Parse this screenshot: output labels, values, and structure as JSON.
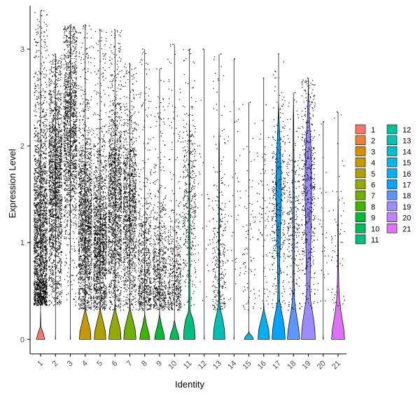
{
  "chart_data": {
    "type": "violin",
    "xlabel": "Identity",
    "ylabel": "Expression Level",
    "ylim": [
      -0.15,
      3.45
    ],
    "yticks": [
      0,
      1,
      2,
      3
    ],
    "grid": false,
    "legend_position": "right",
    "legend_columns": 2,
    "categories": [
      "1",
      "2",
      "3",
      "4",
      "5",
      "6",
      "7",
      "8",
      "9",
      "10",
      "11",
      "12",
      "13",
      "14",
      "15",
      "16",
      "17",
      "18",
      "19",
      "20",
      "21"
    ],
    "colors": [
      "#F8766D",
      "#EC8239",
      "#DB8E00",
      "#C79800",
      "#AFA100",
      "#93AA00",
      "#6FB000",
      "#3CB600",
      "#00BA38",
      "#00BD5C",
      "#00BF7C",
      "#00C19A",
      "#00C0B5",
      "#00BDCF",
      "#00B8E5",
      "#00B0F6",
      "#00A5FF",
      "#5E96FF",
      "#9D8AFF",
      "#C27FFF",
      "#DF70F8"
    ],
    "violins": [
      {
        "cat": "1",
        "shape": [
          [
            0,
            0.55
          ],
          [
            0.06,
            0.35
          ],
          [
            0.13,
            0.04
          ],
          [
            0.3,
            0.0
          ]
        ],
        "dots": {
          "n": 2200,
          "lo": 0.35,
          "hi": 3.1,
          "mode": 1.0,
          "max": 3.4
        }
      },
      {
        "cat": "2",
        "shape": [
          [
            0,
            0.02
          ],
          [
            0.05,
            0.0
          ]
        ],
        "dots": {
          "n": 1800,
          "lo": 0.35,
          "hi": 2.7,
          "mode": 1.6,
          "max": 2.95
        }
      },
      {
        "cat": "3",
        "shape": [
          [
            0,
            0.02
          ],
          [
            0.05,
            0.0
          ]
        ],
        "dots": {
          "n": 1400,
          "lo": 0.35,
          "hi": 2.55,
          "mode": 2.2,
          "max": 3.25
        }
      },
      {
        "cat": "4",
        "shape": [
          [
            0,
            0.75
          ],
          [
            0.08,
            0.7
          ],
          [
            0.18,
            0.4
          ],
          [
            0.28,
            0.1
          ],
          [
            0.35,
            0.0
          ]
        ],
        "dots": {
          "n": 1600,
          "lo": 0.3,
          "hi": 2.4,
          "mode": 1.2,
          "max": 3.25
        }
      },
      {
        "cat": "5",
        "shape": [
          [
            0,
            0.75
          ],
          [
            0.08,
            0.7
          ],
          [
            0.18,
            0.4
          ],
          [
            0.28,
            0.1
          ],
          [
            0.35,
            0.0
          ]
        ],
        "dots": {
          "n": 1500,
          "lo": 0.3,
          "hi": 2.3,
          "mode": 1.0,
          "max": 3.2
        }
      },
      {
        "cat": "6",
        "shape": [
          [
            0,
            0.8
          ],
          [
            0.1,
            0.7
          ],
          [
            0.2,
            0.4
          ],
          [
            0.3,
            0.08
          ],
          [
            0.38,
            0.0
          ]
        ],
        "dots": {
          "n": 1500,
          "lo": 0.3,
          "hi": 2.6,
          "mode": 1.4,
          "max": 3.2
        }
      },
      {
        "cat": "7",
        "shape": [
          [
            0,
            0.8
          ],
          [
            0.1,
            0.7
          ],
          [
            0.2,
            0.4
          ],
          [
            0.3,
            0.08
          ],
          [
            0.38,
            0.0
          ]
        ],
        "dots": {
          "n": 1200,
          "lo": 0.3,
          "hi": 2.5,
          "mode": 1.3,
          "max": 2.85
        }
      },
      {
        "cat": "8",
        "shape": [
          [
            0,
            0.65
          ],
          [
            0.06,
            0.55
          ],
          [
            0.15,
            0.25
          ],
          [
            0.25,
            0.02
          ],
          [
            0.3,
            0.0
          ]
        ],
        "dots": {
          "n": 700,
          "lo": 0.3,
          "hi": 2.2,
          "mode": 0.7,
          "max": 3.0
        }
      },
      {
        "cat": "9",
        "shape": [
          [
            0,
            0.65
          ],
          [
            0.06,
            0.55
          ],
          [
            0.15,
            0.25
          ],
          [
            0.25,
            0.02
          ],
          [
            0.3,
            0.0
          ]
        ],
        "dots": {
          "n": 650,
          "lo": 0.3,
          "hi": 2.1,
          "mode": 0.7,
          "max": 2.8
        }
      },
      {
        "cat": "10",
        "shape": [
          [
            0,
            0.6
          ],
          [
            0.05,
            0.5
          ],
          [
            0.12,
            0.2
          ],
          [
            0.2,
            0.0
          ]
        ],
        "dots": {
          "n": 500,
          "lo": 0.3,
          "hi": 2.0,
          "mode": 0.6,
          "max": 3.05
        }
      },
      {
        "cat": "11",
        "shape": [
          [
            0,
            0.75
          ],
          [
            0.1,
            0.7
          ],
          [
            0.2,
            0.5
          ],
          [
            0.28,
            0.15
          ],
          [
            0.35,
            0.08
          ],
          [
            0.6,
            0.06
          ],
          [
            1.0,
            0.06
          ],
          [
            1.4,
            0.05
          ],
          [
            1.8,
            0.04
          ],
          [
            2.2,
            0.02
          ],
          [
            2.3,
            0.0
          ]
        ],
        "dots": {
          "n": 420,
          "lo": 0.3,
          "hi": 2.4,
          "mode": 1.4,
          "max": 3.0
        }
      },
      {
        "cat": "12",
        "shape": [
          [
            0,
            0.02
          ],
          [
            0.05,
            0.0
          ]
        ],
        "dots": {
          "n": 30,
          "lo": 0.3,
          "hi": 2.6,
          "mode": 1.3,
          "max": 3.0
        }
      },
      {
        "cat": "13",
        "shape": [
          [
            0,
            0.75
          ],
          [
            0.1,
            0.7
          ],
          [
            0.2,
            0.5
          ],
          [
            0.3,
            0.2
          ],
          [
            0.4,
            0.06
          ],
          [
            0.8,
            0.05
          ],
          [
            1.2,
            0.05
          ],
          [
            1.6,
            0.04
          ],
          [
            2.0,
            0.03
          ],
          [
            2.2,
            0.0
          ]
        ],
        "dots": {
          "n": 300,
          "lo": 0.3,
          "hi": 2.3,
          "mode": 0.8,
          "max": 2.95
        }
      },
      {
        "cat": "14",
        "shape": [
          [
            0,
            0.02
          ],
          [
            0.05,
            0.0
          ]
        ],
        "dots": {
          "n": 45,
          "lo": 0.3,
          "hi": 2.6,
          "mode": 1.2,
          "max": 2.9
        }
      },
      {
        "cat": "15",
        "shape": [
          [
            0,
            0.6
          ],
          [
            0.03,
            0.45
          ],
          [
            0.06,
            0.1
          ],
          [
            0.08,
            0.0
          ]
        ],
        "dots": {
          "n": 80,
          "lo": 0.3,
          "hi": 2.5,
          "mode": 1.0,
          "max": 2.45
        }
      },
      {
        "cat": "16",
        "shape": [
          [
            0,
            0.75
          ],
          [
            0.1,
            0.65
          ],
          [
            0.2,
            0.35
          ],
          [
            0.3,
            0.05
          ],
          [
            0.38,
            0.0
          ]
        ],
        "dots": {
          "n": 80,
          "lo": 0.3,
          "hi": 2.6,
          "mode": 1.2,
          "max": 2.7
        }
      },
      {
        "cat": "17",
        "shape": [
          [
            0,
            0.85
          ],
          [
            0.1,
            0.78
          ],
          [
            0.2,
            0.6
          ],
          [
            0.3,
            0.35
          ],
          [
            0.4,
            0.14
          ],
          [
            0.5,
            0.1
          ],
          [
            0.8,
            0.14
          ],
          [
            1.1,
            0.24
          ],
          [
            1.3,
            0.3
          ],
          [
            1.5,
            0.35
          ],
          [
            1.7,
            0.32
          ],
          [
            1.9,
            0.25
          ],
          [
            2.1,
            0.15
          ],
          [
            2.3,
            0.06
          ],
          [
            2.45,
            0.0
          ]
        ],
        "dots": {
          "n": 380,
          "lo": 0.3,
          "hi": 2.4,
          "mode": 1.4,
          "max": 2.95
        }
      },
      {
        "cat": "18",
        "shape": [
          [
            0,
            0.8
          ],
          [
            0.1,
            0.7
          ],
          [
            0.2,
            0.5
          ],
          [
            0.3,
            0.3
          ],
          [
            0.4,
            0.15
          ],
          [
            0.6,
            0.08
          ],
          [
            1.0,
            0.1
          ],
          [
            1.4,
            0.1
          ],
          [
            1.8,
            0.07
          ],
          [
            2.2,
            0.04
          ],
          [
            2.5,
            0.0
          ]
        ],
        "dots": {
          "n": 260,
          "lo": 0.3,
          "hi": 2.5,
          "mode": 1.2,
          "max": 2.55
        }
      },
      {
        "cat": "19",
        "shape": [
          [
            0,
            0.9
          ],
          [
            0.1,
            0.85
          ],
          [
            0.2,
            0.7
          ],
          [
            0.3,
            0.5
          ],
          [
            0.4,
            0.3
          ],
          [
            0.5,
            0.22
          ],
          [
            0.7,
            0.25
          ],
          [
            0.9,
            0.3
          ],
          [
            1.1,
            0.34
          ],
          [
            1.3,
            0.38
          ],
          [
            1.5,
            0.42
          ],
          [
            1.7,
            0.42
          ],
          [
            1.9,
            0.38
          ],
          [
            2.1,
            0.28
          ],
          [
            2.3,
            0.12
          ],
          [
            2.5,
            0.04
          ],
          [
            2.6,
            0.0
          ]
        ],
        "dots": {
          "n": 480,
          "lo": 0.3,
          "hi": 2.6,
          "mode": 1.6,
          "max": 2.7
        }
      },
      {
        "cat": "20",
        "shape": [
          [
            0,
            0.02
          ],
          [
            0.05,
            0.0
          ]
        ],
        "dots": {
          "n": 35,
          "lo": 0.3,
          "hi": 2.3,
          "mode": 1.0,
          "max": 2.25
        }
      },
      {
        "cat": "21",
        "shape": [
          [
            0,
            0.85
          ],
          [
            0.1,
            0.75
          ],
          [
            0.2,
            0.55
          ],
          [
            0.3,
            0.35
          ],
          [
            0.4,
            0.2
          ],
          [
            0.55,
            0.1
          ],
          [
            0.75,
            0.06
          ],
          [
            1.0,
            0.04
          ],
          [
            1.3,
            0.02
          ],
          [
            1.5,
            0.0
          ]
        ],
        "dots": {
          "n": 60,
          "lo": 0.3,
          "hi": 2.3,
          "mode": 0.9,
          "max": 2.35
        }
      }
    ]
  }
}
